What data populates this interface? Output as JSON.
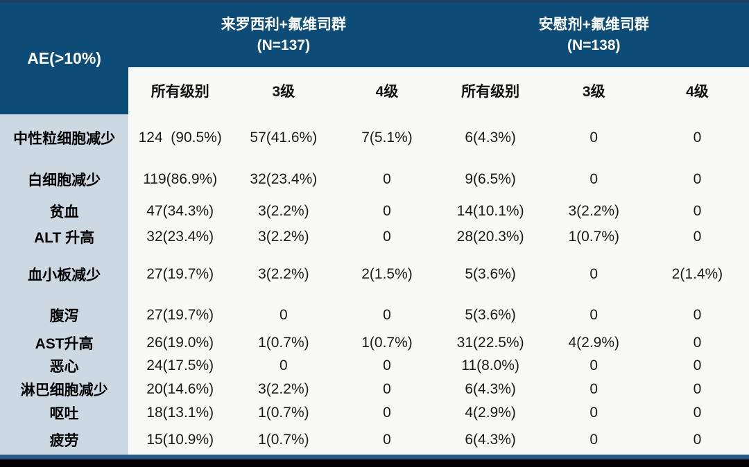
{
  "chart_data": {
    "type": "table",
    "title": "AE(>10%)",
    "column_groups": [
      {
        "title": "来罗西利+氟维司群",
        "n": "(N=137)"
      },
      {
        "title": "安慰剂+氟维司群",
        "n": "(N=138)"
      }
    ],
    "columns": [
      "所有级别",
      "3级",
      "4级",
      "所有级别",
      "3级",
      "4级"
    ],
    "rows": [
      {
        "name": "中性粒细胞减少",
        "values": [
          "124  (90.5%)",
          "57(41.6%)",
          "7(5.1%)",
          "6(4.3%)",
          "0",
          "0"
        ]
      },
      {
        "name": "白细胞减少",
        "values": [
          "119(86.9%)",
          "32(23.4%)",
          "0",
          "9(6.5%)",
          "0",
          "0"
        ]
      },
      {
        "name": "贫血",
        "values": [
          "47(34.3%)",
          "3(2.2%)",
          "0",
          "14(10.1%)",
          "3(2.2%)",
          "0"
        ]
      },
      {
        "name": "ALT 升高",
        "values": [
          "32(23.4%)",
          "3(2.2%)",
          "0",
          "28(20.3%)",
          "1(0.7%)",
          "0"
        ]
      },
      {
        "name": "血小板减少",
        "values": [
          "27(19.7%)",
          "3(2.2%)",
          "2(1.5%)",
          "5(3.6%)",
          "0",
          "2(1.4%)"
        ]
      },
      {
        "name": "腹泻",
        "values": [
          "27(19.7%)",
          "0",
          "0",
          "5(3.6%)",
          "0",
          "0"
        ]
      },
      {
        "name": "AST升高",
        "values": [
          "26(19.0%)",
          "1(0.7%)",
          "1(0.7%)",
          "31(22.5%)",
          "4(2.9%)",
          "0"
        ]
      },
      {
        "name": "恶心",
        "values": [
          "24(17.5%)",
          "0",
          "0",
          "11(8.0%)",
          "0",
          "0"
        ]
      },
      {
        "name": "淋巴细胞减少",
        "values": [
          "20(14.6%)",
          "3(2.2%)",
          "0",
          "6(4.3%)",
          "0",
          "0"
        ]
      },
      {
        "name": "呕吐",
        "values": [
          "18(13.1%)",
          "1(0.7%)",
          "0",
          "4(2.9%)",
          "0",
          "0"
        ]
      },
      {
        "name": "疲劳",
        "values": [
          "15(10.9%)",
          "1(0.7%)",
          "0",
          "6(4.3%)",
          "0",
          "0"
        ]
      }
    ],
    "layout": {
      "grid": false,
      "legend_position": "none"
    },
    "colors": {
      "header_blue": "#0e4c78",
      "row_label_blue": "#ccd9e2",
      "cell_background": "#f9f9f8",
      "accent_bar_blue": "#235887",
      "frame_black": "#000000"
    }
  }
}
